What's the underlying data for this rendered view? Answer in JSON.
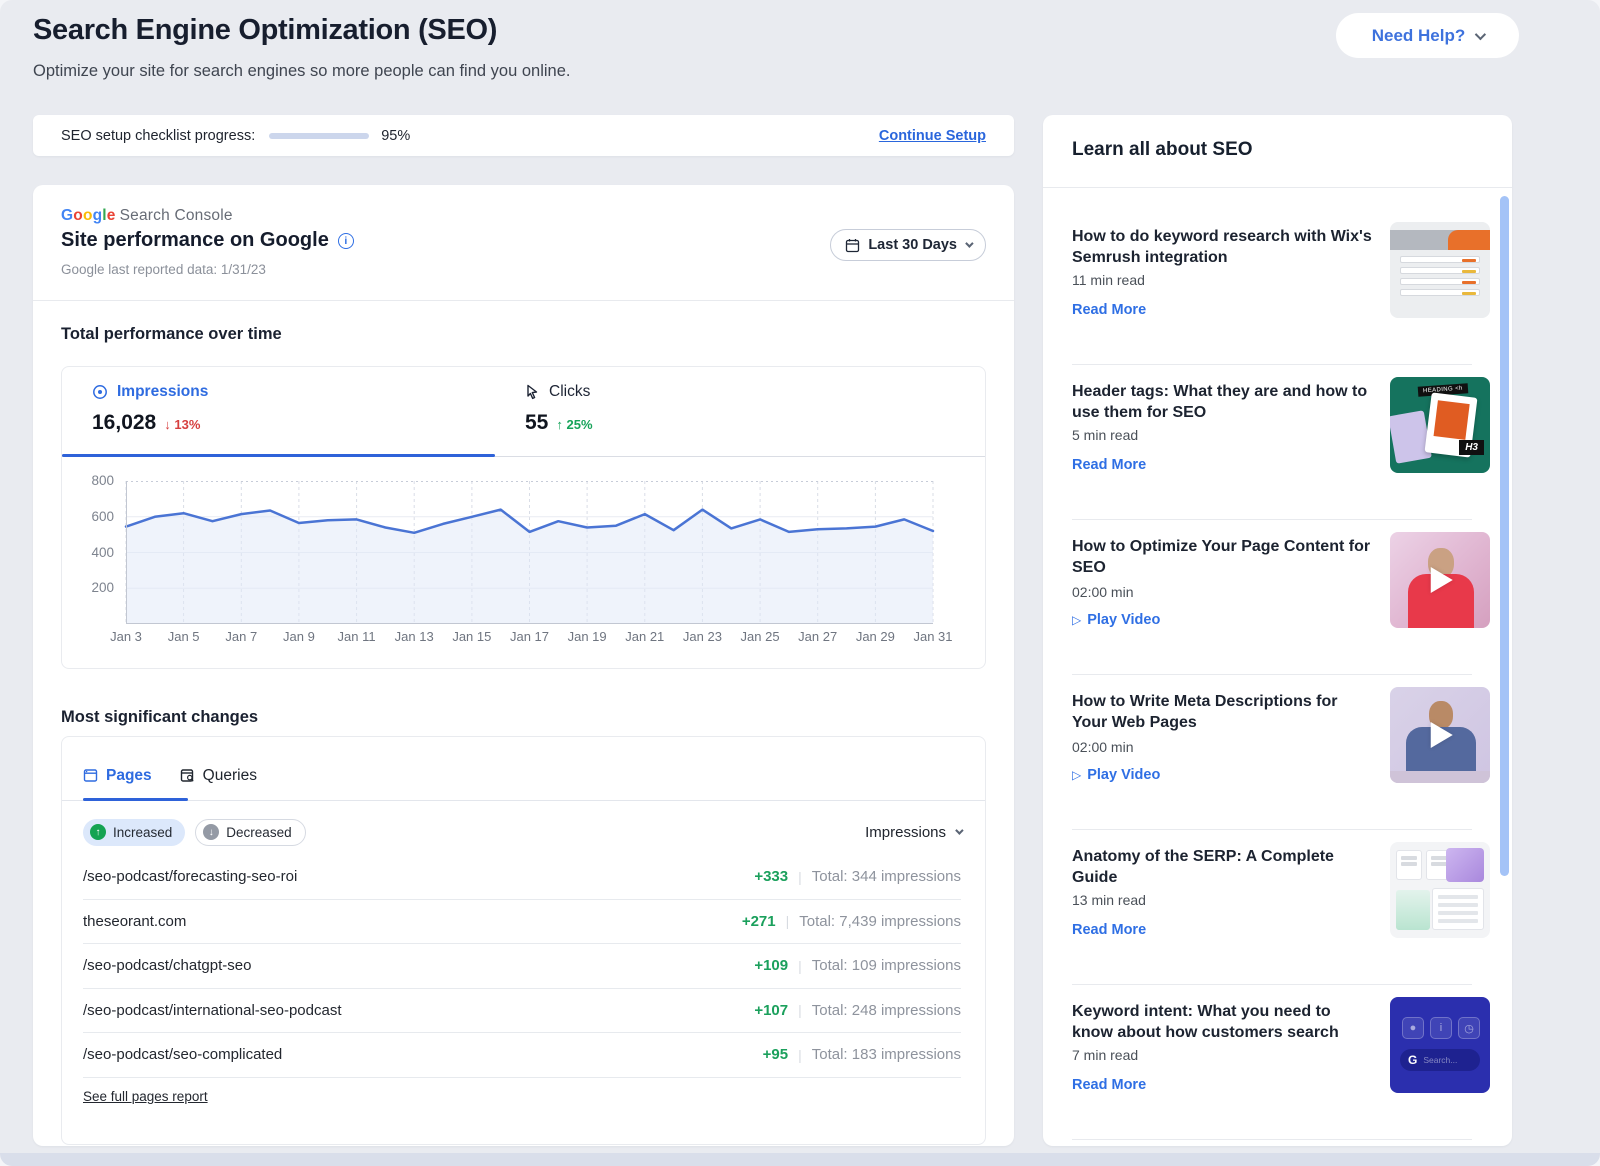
{
  "header": {
    "title": "Search Engine Optimization (SEO)",
    "subtitle": "Optimize your site for search engines so more people can find you online.",
    "help_button": "Need Help?"
  },
  "progress": {
    "label": "SEO setup checklist progress:",
    "percent": 95,
    "percent_label": "95%",
    "link": "Continue Setup"
  },
  "console_card": {
    "logo_google": "Google",
    "logo_rest": "Search Console",
    "title": "Site performance on Google",
    "subtitle": "Google last reported data: 1/31/23",
    "date_button": "Last 30 Days"
  },
  "performance": {
    "section_title": "Total performance over time",
    "impressions": {
      "label": "Impressions",
      "value": "16,028",
      "delta": "13%",
      "direction": "down"
    },
    "clicks": {
      "label": "Clicks",
      "value": "55",
      "delta": "25%",
      "direction": "up"
    }
  },
  "chart_data": {
    "type": "line",
    "title": "Impressions over time",
    "x": [
      "Jan 3",
      "Jan 4",
      "Jan 5",
      "Jan 6",
      "Jan 7",
      "Jan 8",
      "Jan 9",
      "Jan 10",
      "Jan 11",
      "Jan 12",
      "Jan 13",
      "Jan 14",
      "Jan 15",
      "Jan 16",
      "Jan 17",
      "Jan 18",
      "Jan 19",
      "Jan 20",
      "Jan 21",
      "Jan 22",
      "Jan 23",
      "Jan 24",
      "Jan 25",
      "Jan 26",
      "Jan 27",
      "Jan 28",
      "Jan 29",
      "Jan 30",
      "Jan 31"
    ],
    "series": [
      {
        "name": "Impressions",
        "values": [
          545,
          600,
          620,
          575,
          615,
          635,
          565,
          580,
          585,
          540,
          510,
          560,
          600,
          640,
          515,
          575,
          540,
          550,
          615,
          525,
          640,
          535,
          585,
          515,
          530,
          535,
          545,
          585,
          520
        ]
      }
    ],
    "x_tick_labels": [
      "Jan 3",
      "Jan 5",
      "Jan 7",
      "Jan 9",
      "Jan 11",
      "Jan 13",
      "Jan 15",
      "Jan 17",
      "Jan 19",
      "Jan 21",
      "Jan 23",
      "Jan 25",
      "Jan 27",
      "Jan 29",
      "Jan 31"
    ],
    "ylim": [
      0,
      800
    ],
    "yticks": [
      200,
      400,
      600,
      800
    ],
    "grid": true,
    "legend": "none",
    "line_color": "#4a74d4",
    "area_color": "#dfe8f8"
  },
  "changes": {
    "section_title": "Most significant changes",
    "tabs": [
      {
        "label": "Pages"
      },
      {
        "label": "Queries"
      }
    ],
    "filters": [
      {
        "label": "Increased"
      },
      {
        "label": "Decreased"
      }
    ],
    "sort_label": "Impressions",
    "rows": [
      {
        "page": "/seo-podcast/forecasting-seo-roi",
        "change": "+333",
        "total": "Total: 344 impressions"
      },
      {
        "page": "theseorant.com",
        "change": "+271",
        "total": "Total: 7,439 impressions"
      },
      {
        "page": "/seo-podcast/chatgpt-seo",
        "change": "+109",
        "total": "Total: 109 impressions"
      },
      {
        "page": "/seo-podcast/international-seo-podcast",
        "change": "+107",
        "total": "Total: 248 impressions"
      },
      {
        "page": "/seo-podcast/seo-complicated",
        "change": "+95",
        "total": "Total: 183 impressions"
      }
    ],
    "footer_link": "See full pages report"
  },
  "sidebar": {
    "title": "Learn all about SEO",
    "articles": [
      {
        "title": "How to do keyword research with Wix's Semrush integration",
        "meta": "11 min read",
        "action": "Read More",
        "type": "read"
      },
      {
        "title": "Header tags: What they are and how to use them for SEO",
        "meta": "5 min read",
        "action": "Read More",
        "type": "read"
      },
      {
        "title": "How to Optimize Your Page Content for SEO",
        "meta": "02:00 min",
        "action": "Play Video",
        "type": "video"
      },
      {
        "title": "How to Write Meta Descriptions for Your Web Pages",
        "meta": "02:00 min",
        "action": "Play Video",
        "type": "video"
      },
      {
        "title": "Anatomy of the SERP: A Complete Guide",
        "meta": "13 min read",
        "action": "Read More",
        "type": "read"
      },
      {
        "title": "Keyword intent: What you need to know about how customers search",
        "meta": "7 min read",
        "action": "Read More",
        "type": "read"
      }
    ],
    "thumb_labels": {
      "header_chip": "HEADING <h",
      "h3_badge": "H3",
      "intent_g": "G",
      "intent_search": "Search..."
    }
  },
  "colors": {
    "accent_blue": "#2e62d9",
    "link_blue": "#2f6fe4",
    "green": "#17a35a",
    "red": "#d63f3f",
    "google_letters": [
      "#4285F4",
      "#EA4335",
      "#FBBC05",
      "#4285F4",
      "#34A853",
      "#EA4335"
    ]
  }
}
